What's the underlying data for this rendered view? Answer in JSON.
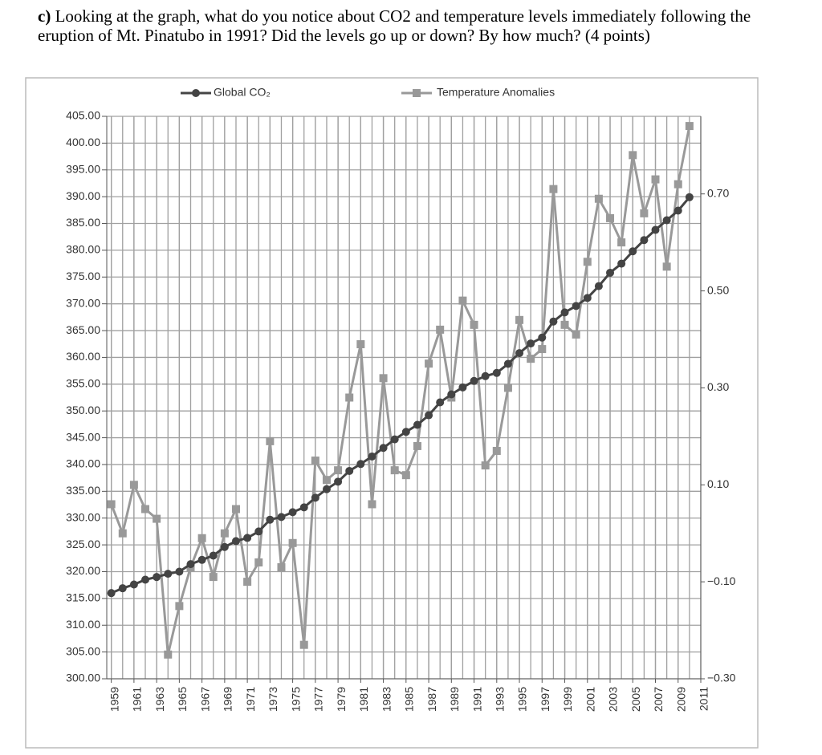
{
  "question": {
    "label": "c)",
    "text": "Looking at the graph, what do you notice about CO2 and temperature levels immediately following the eruption of Mt. Pinatubo in 1991? Did the levels go up or down? By how much? (4 points)"
  },
  "chart_data": {
    "type": "line",
    "x": [
      1959,
      1960,
      1961,
      1962,
      1963,
      1964,
      1965,
      1966,
      1967,
      1968,
      1969,
      1970,
      1971,
      1972,
      1973,
      1974,
      1975,
      1976,
      1977,
      1978,
      1979,
      1980,
      1981,
      1982,
      1983,
      1984,
      1985,
      1986,
      1987,
      1988,
      1989,
      1990,
      1991,
      1992,
      1993,
      1994,
      1995,
      1996,
      1997,
      1998,
      1999,
      2000,
      2001,
      2002,
      2003,
      2004,
      2005,
      2006,
      2007,
      2008,
      2009,
      2010
    ],
    "series": [
      {
        "name": "Global CO₂",
        "color": "#444444",
        "marker": "circle",
        "values": [
          316.0,
          316.9,
          317.6,
          318.5,
          319.0,
          319.6,
          320.0,
          321.4,
          322.2,
          323.0,
          324.6,
          325.7,
          326.3,
          327.5,
          329.7,
          330.2,
          331.1,
          332.0,
          333.8,
          335.4,
          336.8,
          338.8,
          340.1,
          341.5,
          343.1,
          344.7,
          346.1,
          347.4,
          349.2,
          351.6,
          353.1,
          354.4,
          355.6,
          356.5,
          357.1,
          358.8,
          360.8,
          362.6,
          363.7,
          366.7,
          368.4,
          369.6,
          371.1,
          373.3,
          375.8,
          377.5,
          379.8,
          381.9,
          383.8,
          385.6,
          387.4,
          389.9
        ]
      },
      {
        "name": "Temperature Anomalies",
        "color": "#999999",
        "marker": "square",
        "axis": "y2",
        "values": [
          0.06,
          0.0,
          0.1,
          0.05,
          0.03,
          -0.25,
          -0.15,
          -0.07,
          -0.01,
          -0.09,
          0.0,
          0.05,
          -0.1,
          -0.06,
          0.19,
          -0.07,
          -0.02,
          -0.23,
          0.15,
          0.11,
          0.13,
          0.28,
          0.39,
          0.06,
          0.32,
          0.13,
          0.12,
          0.18,
          0.35,
          0.42,
          0.28,
          0.48,
          0.43,
          0.14,
          0.17,
          0.3,
          0.44,
          0.36,
          0.38,
          0.71,
          0.43,
          0.41,
          0.56,
          0.69,
          0.65,
          0.6,
          0.78,
          0.66,
          0.73,
          0.55,
          0.72,
          0.84
        ]
      }
    ],
    "xlim": [
      1958.6,
      2011
    ],
    "xticks": [
      1959,
      1961,
      1963,
      1965,
      1967,
      1969,
      1971,
      1973,
      1975,
      1977,
      1979,
      1981,
      1983,
      1985,
      1987,
      1989,
      1991,
      1993,
      1995,
      1997,
      1999,
      2001,
      2003,
      2005,
      2007,
      2009,
      2011
    ],
    "ylim": [
      300,
      405
    ],
    "yticks": [
      {
        "value": 300,
        "label": "300.00"
      },
      {
        "value": 305,
        "label": "305.00"
      },
      {
        "value": 310,
        "label": "310.00"
      },
      {
        "value": 315,
        "label": "315.00"
      },
      {
        "value": 320,
        "label": "320.00"
      },
      {
        "value": 325,
        "label": "325.00"
      },
      {
        "value": 330,
        "label": "330.00"
      },
      {
        "value": 335,
        "label": "335.00"
      },
      {
        "value": 340,
        "label": "340.00"
      },
      {
        "value": 345,
        "label": "345.00"
      },
      {
        "value": 350,
        "label": "350.00"
      },
      {
        "value": 355,
        "label": "355.00"
      },
      {
        "value": 360,
        "label": "360.00"
      },
      {
        "value": 365,
        "label": "365.00"
      },
      {
        "value": 370,
        "label": "370.00"
      },
      {
        "value": 375,
        "label": "375.00"
      },
      {
        "value": 380,
        "label": "380.00"
      },
      {
        "value": 385,
        "label": "385.00"
      },
      {
        "value": 390,
        "label": "390.00"
      },
      {
        "value": 395,
        "label": "395.00"
      },
      {
        "value": 400,
        "label": "400.00"
      },
      {
        "value": 405,
        "label": "405.00"
      }
    ],
    "y2lim": [
      -0.3,
      0.86
    ],
    "y2ticks": [
      {
        "value": -0.3,
        "label": "−0.30"
      },
      {
        "value": -0.1,
        "label": "−0.10"
      },
      {
        "value": 0.1,
        "label": "0.10"
      },
      {
        "value": 0.3,
        "label": "0.30"
      },
      {
        "value": 0.5,
        "label": "0.50"
      },
      {
        "value": 0.7,
        "label": "0.70"
      }
    ],
    "grid": true,
    "legend": "top"
  }
}
